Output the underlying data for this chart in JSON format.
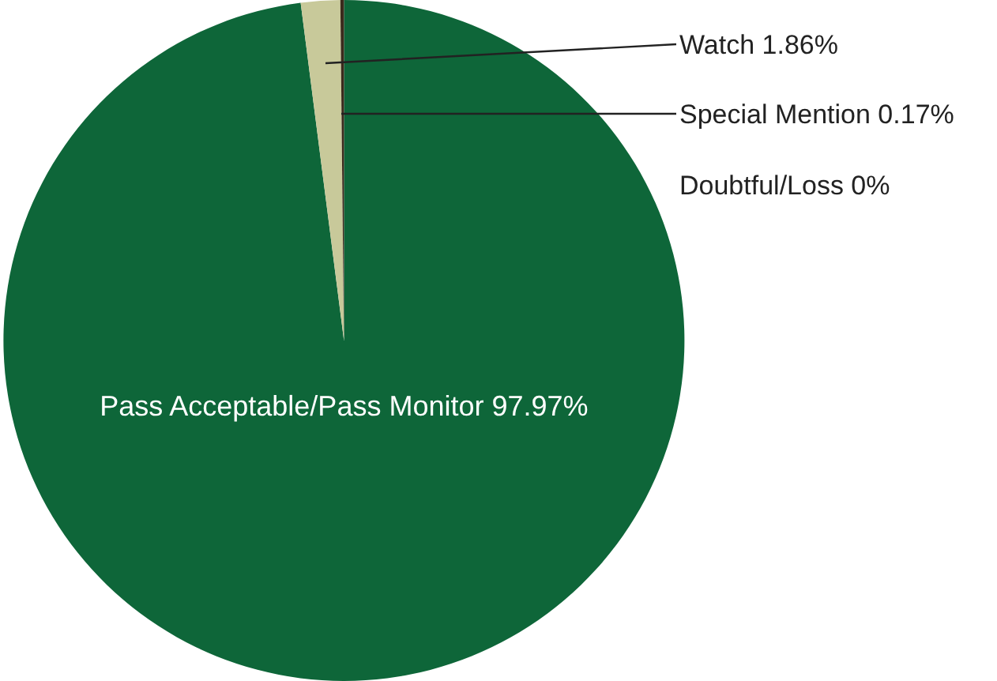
{
  "chart_data": {
    "type": "pie",
    "categories": [
      "Pass Acceptable/Pass Monitor",
      "Watch",
      "Special Mention",
      "Doubtful/Loss"
    ],
    "values": [
      97.97,
      1.86,
      0.17,
      0
    ],
    "value_labels": [
      "97.97%",
      "1.86%",
      "0.17%",
      "0%"
    ],
    "colors": [
      "#0e6639",
      "#c8c99a",
      "#3b2a1c",
      "#7a1f1f"
    ]
  }
}
